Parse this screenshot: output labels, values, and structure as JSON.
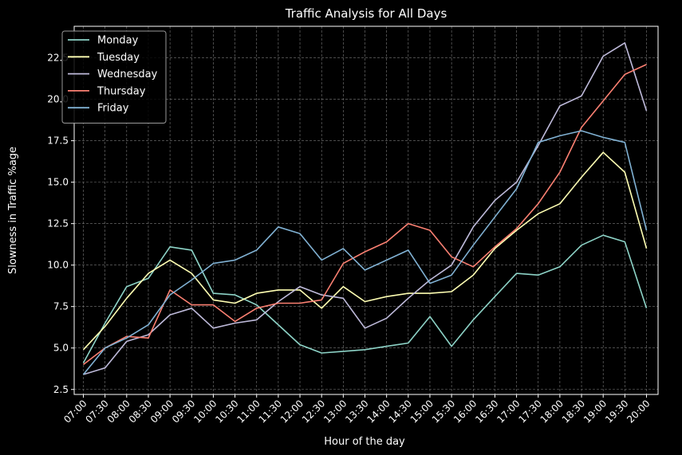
{
  "chart_data": {
    "type": "line",
    "title": "Traffic Analysis for All Days",
    "xlabel": "Hour of the day",
    "ylabel": "Slowness in Traffic %age",
    "categories": [
      "07:00",
      "07:30",
      "08:00",
      "08:30",
      "09:00",
      "09:30",
      "10:00",
      "10:30",
      "11:00",
      "11:30",
      "12:00",
      "12:30",
      "13:00",
      "13:30",
      "14:00",
      "14:30",
      "15:00",
      "15:30",
      "16:00",
      "16:30",
      "17:00",
      "17:30",
      "18:00",
      "18:30",
      "19:00",
      "19:30",
      "20:00"
    ],
    "yticks": [
      2.5,
      5.0,
      7.5,
      10.0,
      12.5,
      15.0,
      17.5,
      20.0,
      22.5
    ],
    "ylim": [
      2.2,
      24.4
    ],
    "grid": true,
    "legend_position": "upper-left",
    "series": [
      {
        "name": "Monday",
        "color": "#8dd3c7",
        "values": [
          4.1,
          6.5,
          8.7,
          9.2,
          11.1,
          10.9,
          8.3,
          8.2,
          7.6,
          6.4,
          5.2,
          4.7,
          4.8,
          4.9,
          5.1,
          5.3,
          6.9,
          5.1,
          6.7,
          8.1,
          9.5,
          9.4,
          9.9,
          11.2,
          11.8,
          11.4,
          7.4
        ]
      },
      {
        "name": "Tuesday",
        "color": "#ffffb3",
        "values": [
          4.9,
          6.3,
          8.0,
          9.5,
          10.3,
          9.5,
          7.9,
          7.7,
          8.3,
          8.5,
          8.5,
          7.4,
          8.7,
          7.8,
          8.1,
          8.3,
          8.3,
          8.4,
          9.4,
          11.0,
          12.1,
          13.1,
          13.7,
          15.3,
          16.8,
          15.6,
          11.0
        ]
      },
      {
        "name": "Wednesday",
        "color": "#bebada",
        "values": [
          3.4,
          3.8,
          5.4,
          5.8,
          7.0,
          7.4,
          6.2,
          6.5,
          6.7,
          7.8,
          8.7,
          8.2,
          8.0,
          6.2,
          6.8,
          8.0,
          9.1,
          10.0,
          12.3,
          13.9,
          15.0,
          17.2,
          19.6,
          20.2,
          22.6,
          23.4,
          19.3
        ]
      },
      {
        "name": "Thursday",
        "color": "#fb8072",
        "values": [
          4.0,
          5.0,
          5.7,
          5.6,
          8.5,
          7.6,
          7.6,
          6.6,
          7.4,
          7.7,
          7.7,
          7.9,
          10.1,
          10.8,
          11.4,
          12.5,
          12.1,
          10.5,
          9.9,
          11.1,
          12.2,
          13.7,
          15.6,
          18.3,
          19.9,
          21.5,
          22.1
        ]
      },
      {
        "name": "Friday",
        "color": "#80b1d3",
        "values": [
          3.4,
          5.0,
          5.6,
          6.4,
          8.2,
          9.1,
          10.1,
          10.3,
          10.9,
          12.3,
          11.9,
          10.3,
          11.0,
          9.7,
          10.3,
          10.9,
          8.9,
          9.4,
          11.2,
          12.9,
          14.6,
          17.4,
          17.8,
          18.1,
          17.7,
          17.4,
          12.1
        ]
      }
    ]
  }
}
